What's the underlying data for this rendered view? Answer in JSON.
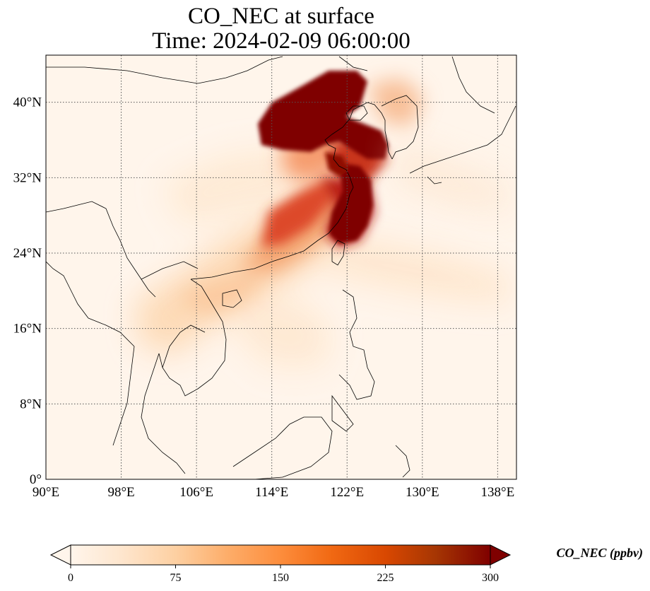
{
  "title": {
    "line1": "CO_NEC at surface",
    "line2": "Time: 2024-02-09 06:00:00"
  },
  "map": {
    "lon_range": [
      90,
      140
    ],
    "lat_range": [
      0,
      45
    ],
    "lon_ticks": [
      {
        "value": 90,
        "label": "90°E"
      },
      {
        "value": 98,
        "label": "98°E"
      },
      {
        "value": 106,
        "label": "106°E"
      },
      {
        "value": 114,
        "label": "114°E"
      },
      {
        "value": 122,
        "label": "122°E"
      },
      {
        "value": 130,
        "label": "130°E"
      },
      {
        "value": 138,
        "label": "138°E"
      }
    ],
    "lat_ticks": [
      {
        "value": 0,
        "label": "0°"
      },
      {
        "value": 8,
        "label": "8°N"
      },
      {
        "value": 16,
        "label": "16°N"
      },
      {
        "value": 24,
        "label": "24°N"
      },
      {
        "value": 32,
        "label": "32°N"
      },
      {
        "value": 40,
        "label": "40°N"
      }
    ],
    "gridlines": true,
    "gridline_style": "dotted"
  },
  "colorbar": {
    "label": "CO_NEC (ppbv)",
    "min": 0,
    "max": 300,
    "ticks": [
      "0",
      "75",
      "150",
      "225",
      "300"
    ],
    "extend": "both",
    "colors": [
      "#fff5eb",
      "#fee6ce",
      "#fdd0a2",
      "#fdae6b",
      "#fd8d3c",
      "#f16913",
      "#d94801",
      "#a63603",
      "#7f2704"
    ]
  }
}
